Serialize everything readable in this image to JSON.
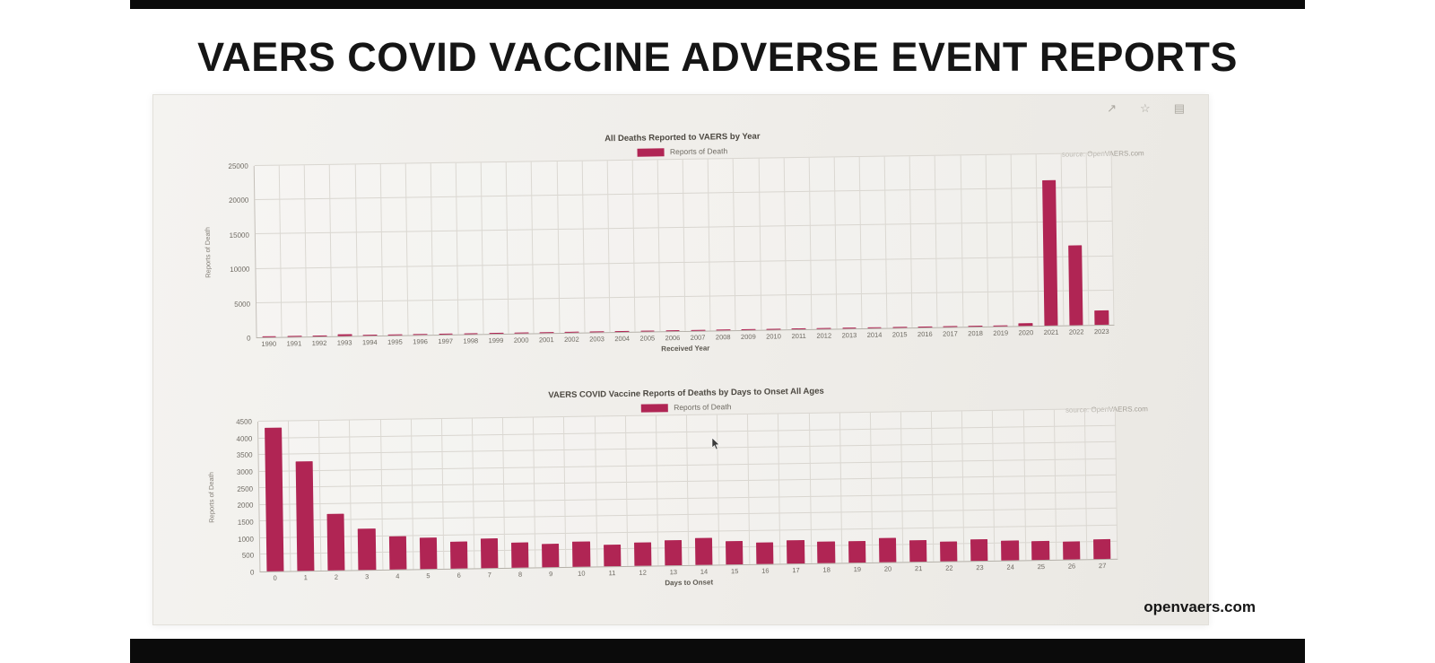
{
  "slide": {
    "title": "VAERS COVID VACCINE ADVERSE EVENT REPORTS",
    "watermark": "openvaers.com"
  },
  "browser_toolbar": {
    "icons": [
      {
        "name": "share-icon",
        "glyph": "↗"
      },
      {
        "name": "favorite-icon",
        "glyph": "☆"
      },
      {
        "name": "settings-icon",
        "glyph": "▤"
      }
    ]
  },
  "chart_data": [
    {
      "type": "bar",
      "title": "All Deaths Reported to VAERS by Year",
      "legend": [
        "Reports of Death"
      ],
      "source": "source: OpenVAERS.com",
      "xlabel": "Received Year",
      "ylabel": "Reports of Death",
      "ylim": [
        0,
        25000
      ],
      "yticks": [
        0,
        5000,
        10000,
        15000,
        20000,
        25000
      ],
      "grid": true,
      "legend_position": "top-center",
      "bar_color": "#b02554",
      "categories": [
        "1990",
        "1991",
        "1992",
        "1993",
        "1994",
        "1995",
        "1996",
        "1997",
        "1998",
        "1999",
        "2000",
        "2001",
        "2002",
        "2003",
        "2004",
        "2005",
        "2006",
        "2007",
        "2008",
        "2009",
        "2010",
        "2011",
        "2012",
        "2013",
        "2014",
        "2015",
        "2016",
        "2017",
        "2018",
        "2019",
        "2020",
        "2021",
        "2022",
        "2023"
      ],
      "values": [
        178,
        152,
        189,
        215,
        182,
        170,
        160,
        175,
        155,
        170,
        160,
        180,
        145,
        190,
        155,
        150,
        160,
        155,
        175,
        190,
        170,
        165,
        150,
        155,
        160,
        150,
        145,
        160,
        150,
        195,
        420,
        21200,
        11700,
        2100
      ]
    },
    {
      "type": "bar",
      "title": "VAERS COVID Vaccine Reports of Deaths by Days to Onset All Ages",
      "legend": [
        "Reports of Death"
      ],
      "source": "source: OpenVAERS.com",
      "xlabel": "Days to Onset",
      "ylabel": "Reports of Death",
      "ylim": [
        0,
        4500
      ],
      "yticks": [
        0,
        500,
        1000,
        1500,
        2000,
        2500,
        3000,
        3500,
        4000,
        4500
      ],
      "grid": true,
      "legend_position": "top-center",
      "bar_color": "#b02554",
      "categories": [
        "0",
        "1",
        "2",
        "3",
        "4",
        "5",
        "6",
        "7",
        "8",
        "9",
        "10",
        "11",
        "12",
        "13",
        "14",
        "15",
        "16",
        "17",
        "18",
        "19",
        "20",
        "21",
        "22",
        "23",
        "24",
        "25",
        "26",
        "27"
      ],
      "values": [
        4300,
        3300,
        1700,
        1250,
        1000,
        950,
        820,
        900,
        760,
        700,
        750,
        660,
        700,
        760,
        800,
        700,
        660,
        700,
        650,
        650,
        740,
        650,
        600,
        650,
        600,
        560,
        550,
        600
      ]
    }
  ]
}
